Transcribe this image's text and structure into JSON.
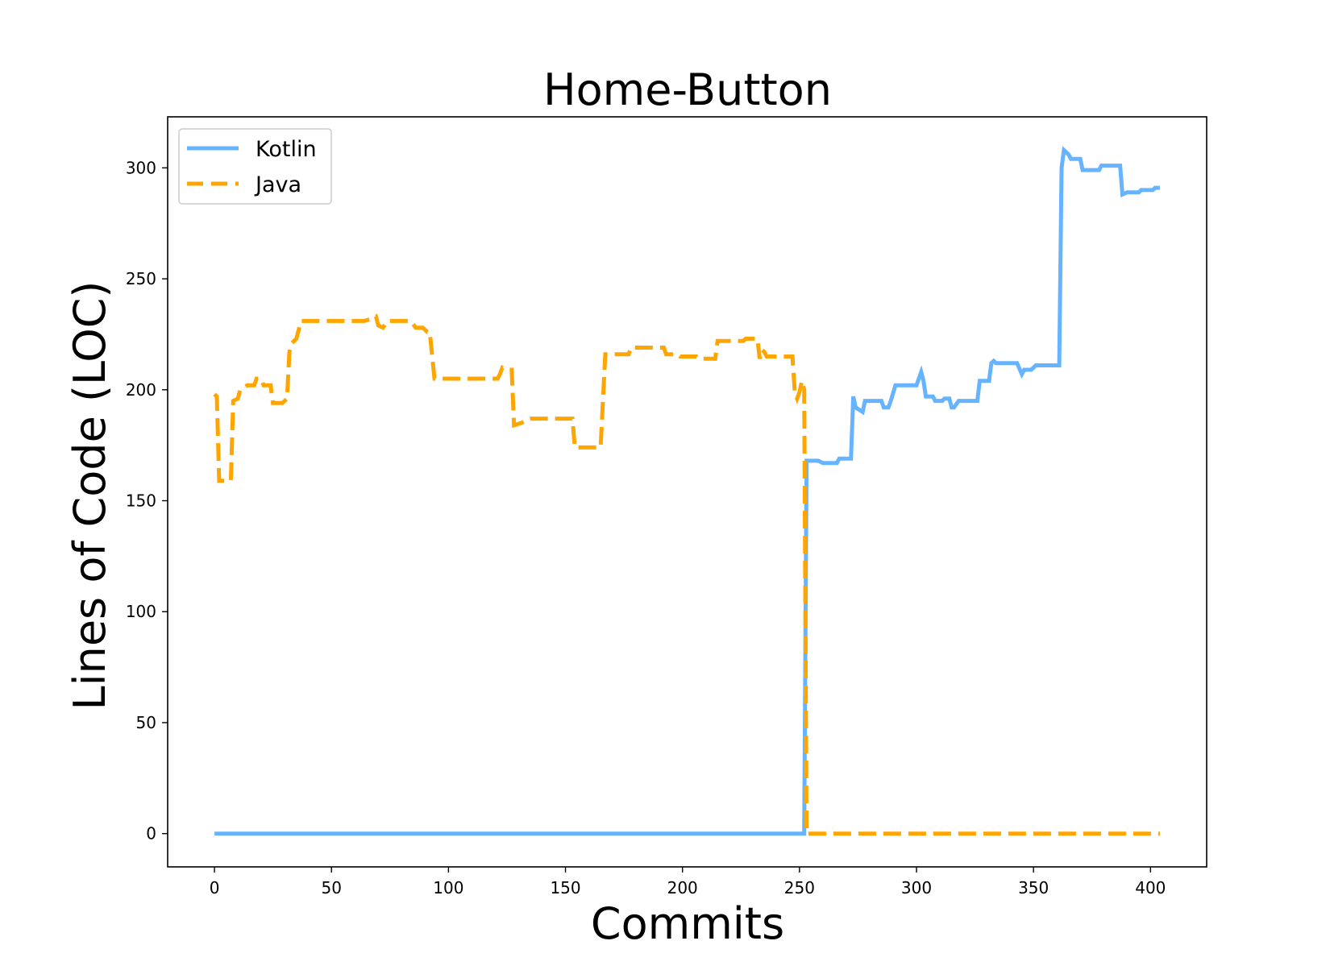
{
  "chart_data": {
    "type": "line",
    "title": "Home-Button",
    "xlabel": "Commits",
    "ylabel": "Lines of Code (LOC)",
    "xlim": [
      -20,
      424
    ],
    "ylim": [
      -15,
      323
    ],
    "xticks": [
      0,
      50,
      100,
      150,
      200,
      250,
      300,
      350,
      400
    ],
    "yticks": [
      0,
      50,
      100,
      150,
      200,
      250,
      300
    ],
    "grid": false,
    "legend_position": "top-left",
    "series": [
      {
        "name": "Kotlin",
        "color": "#66b3ff",
        "style": "solid",
        "points": [
          [
            0,
            0
          ],
          [
            252,
            0
          ],
          [
            253,
            168
          ],
          [
            258,
            168
          ],
          [
            260,
            167
          ],
          [
            266,
            167
          ],
          [
            267,
            169
          ],
          [
            272,
            169
          ],
          [
            273,
            197
          ],
          [
            274,
            192
          ],
          [
            277,
            190
          ],
          [
            278,
            195
          ],
          [
            285,
            195
          ],
          [
            286,
            192
          ],
          [
            288,
            192
          ],
          [
            289,
            195
          ],
          [
            291,
            202
          ],
          [
            300,
            202
          ],
          [
            302,
            208
          ],
          [
            303,
            204
          ],
          [
            304,
            197
          ],
          [
            307,
            197
          ],
          [
            308,
            195
          ],
          [
            311,
            195
          ],
          [
            312,
            196
          ],
          [
            314,
            196
          ],
          [
            315,
            192
          ],
          [
            316,
            192
          ],
          [
            318,
            195
          ],
          [
            326,
            195
          ],
          [
            327,
            204
          ],
          [
            331,
            204
          ],
          [
            332,
            212
          ],
          [
            333,
            213
          ],
          [
            334,
            212
          ],
          [
            343,
            212
          ],
          [
            345,
            207
          ],
          [
            346,
            209
          ],
          [
            349,
            209
          ],
          [
            351,
            211
          ],
          [
            361,
            211
          ],
          [
            362,
            300
          ],
          [
            363,
            308
          ],
          [
            365,
            306
          ],
          [
            366,
            304
          ],
          [
            370,
            304
          ],
          [
            371,
            299
          ],
          [
            378,
            299
          ],
          [
            379,
            301
          ],
          [
            387,
            301
          ],
          [
            388,
            288
          ],
          [
            390,
            289
          ],
          [
            395,
            289
          ],
          [
            396,
            290
          ],
          [
            401,
            290
          ],
          [
            402,
            291
          ],
          [
            404,
            291
          ]
        ]
      },
      {
        "name": "Java",
        "color": "#ffa500",
        "style": "dashed",
        "points": [
          [
            0,
            198
          ],
          [
            1,
            197
          ],
          [
            2,
            159
          ],
          [
            7,
            159
          ],
          [
            8,
            195
          ],
          [
            10,
            196
          ],
          [
            11,
            200
          ],
          [
            14,
            202
          ],
          [
            17,
            202
          ],
          [
            18,
            205
          ],
          [
            20,
            205
          ],
          [
            21,
            202
          ],
          [
            24,
            202
          ],
          [
            25,
            194
          ],
          [
            29,
            194
          ],
          [
            31,
            196
          ],
          [
            32,
            217
          ],
          [
            33,
            221
          ],
          [
            35,
            223
          ],
          [
            37,
            231
          ],
          [
            64,
            231
          ],
          [
            67,
            232
          ],
          [
            69,
            233
          ],
          [
            70,
            229
          ],
          [
            72,
            228
          ],
          [
            74,
            231
          ],
          [
            84,
            231
          ],
          [
            86,
            228
          ],
          [
            89,
            228
          ],
          [
            91,
            226
          ],
          [
            92,
            226
          ],
          [
            94,
            205
          ],
          [
            121,
            205
          ],
          [
            122,
            207
          ],
          [
            123,
            210
          ],
          [
            125,
            209
          ],
          [
            127,
            209
          ],
          [
            128,
            184
          ],
          [
            131,
            185
          ],
          [
            133,
            186
          ],
          [
            135,
            187
          ],
          [
            153,
            187
          ],
          [
            154,
            174
          ],
          [
            165,
            174
          ],
          [
            167,
            216
          ],
          [
            177,
            216
          ],
          [
            178,
            219
          ],
          [
            192,
            219
          ],
          [
            193,
            216
          ],
          [
            198,
            216
          ],
          [
            199,
            215
          ],
          [
            206,
            215
          ],
          [
            207,
            214
          ],
          [
            214,
            214
          ],
          [
            215,
            222
          ],
          [
            226,
            222
          ],
          [
            227,
            223
          ],
          [
            232,
            223
          ],
          [
            233,
            214
          ],
          [
            234,
            218
          ],
          [
            235,
            217
          ],
          [
            236,
            215
          ],
          [
            247,
            215
          ],
          [
            248,
            199
          ],
          [
            249,
            196
          ],
          [
            250,
            199
          ],
          [
            251,
            204
          ],
          [
            252,
            200
          ],
          [
            253,
            0
          ],
          [
            404,
            0
          ]
        ]
      }
    ]
  }
}
